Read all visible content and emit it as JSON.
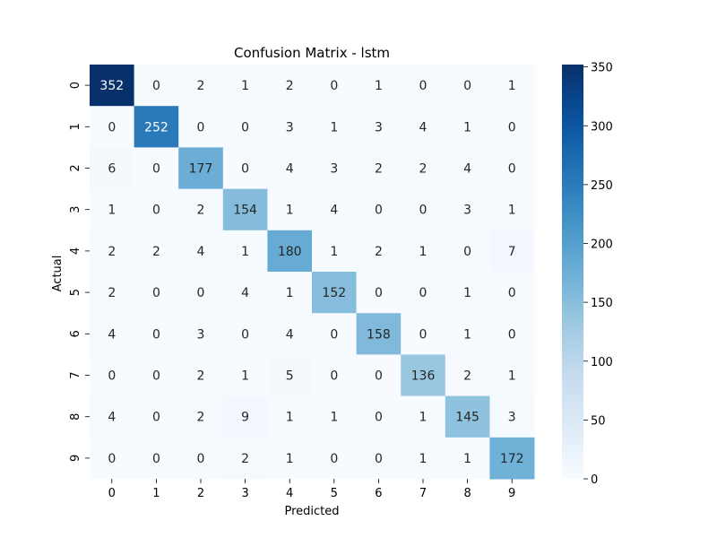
{
  "chart_data": {
    "type": "heatmap",
    "title": "Confusion Matrix - lstm",
    "xlabel": "Predicted",
    "ylabel": "Actual",
    "x_categories": [
      "0",
      "1",
      "2",
      "3",
      "4",
      "5",
      "6",
      "7",
      "8",
      "9"
    ],
    "y_categories": [
      "0",
      "1",
      "2",
      "3",
      "4",
      "5",
      "6",
      "7",
      "8",
      "9"
    ],
    "values": [
      [
        352,
        0,
        2,
        1,
        2,
        0,
        1,
        0,
        0,
        1
      ],
      [
        0,
        252,
        0,
        0,
        3,
        1,
        3,
        4,
        1,
        0
      ],
      [
        6,
        0,
        177,
        0,
        4,
        3,
        2,
        2,
        4,
        0
      ],
      [
        1,
        0,
        2,
        154,
        1,
        4,
        0,
        0,
        3,
        1
      ],
      [
        2,
        2,
        4,
        1,
        180,
        1,
        2,
        1,
        0,
        7
      ],
      [
        2,
        0,
        0,
        4,
        1,
        152,
        0,
        0,
        1,
        0
      ],
      [
        4,
        0,
        3,
        0,
        4,
        0,
        158,
        0,
        1,
        0
      ],
      [
        0,
        0,
        2,
        1,
        5,
        0,
        0,
        136,
        2,
        1
      ],
      [
        4,
        0,
        2,
        9,
        1,
        1,
        0,
        1,
        145,
        3
      ],
      [
        0,
        0,
        0,
        2,
        1,
        0,
        0,
        1,
        1,
        172
      ]
    ],
    "colormap": "Blues",
    "vmin": 0,
    "vmax": 352,
    "colorbar_ticks": [
      0,
      50,
      100,
      150,
      200,
      250,
      300,
      350
    ],
    "grid": false,
    "legend": "colorbar-right"
  }
}
